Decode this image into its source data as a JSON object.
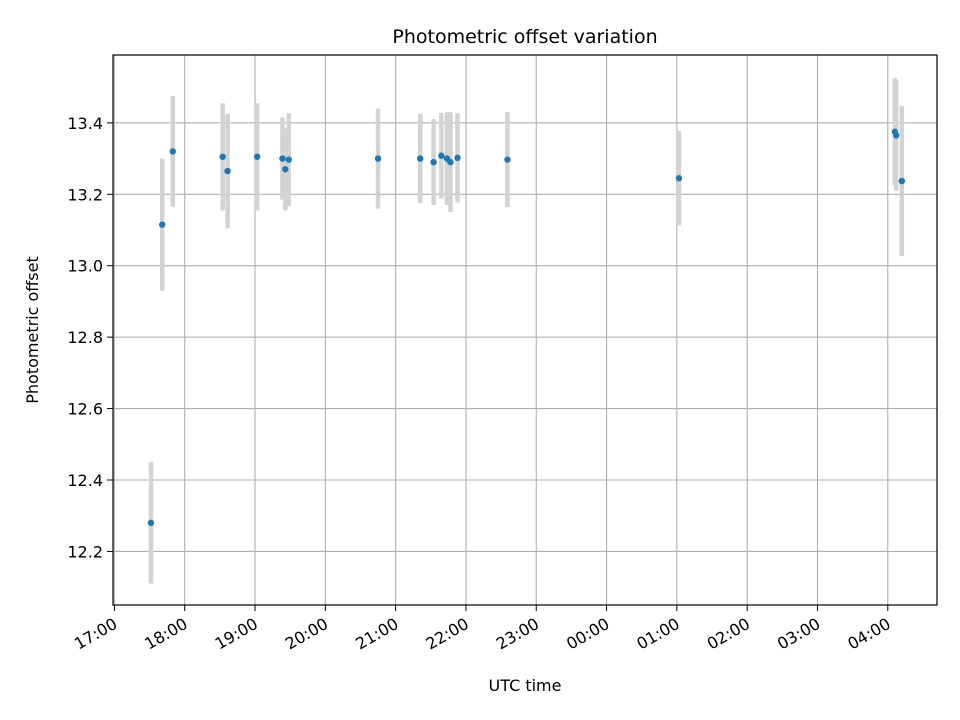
{
  "chart_data": {
    "type": "scatter",
    "title": "Photometric offset variation",
    "xlabel": "UTC time",
    "ylabel": "Photometric offset",
    "x_tick_labels": [
      "17:00",
      "18:00",
      "19:00",
      "20:00",
      "21:00",
      "22:00",
      "23:00",
      "00:00",
      "01:00",
      "02:00",
      "03:00",
      "04:00"
    ],
    "x_tick_hours": [
      17,
      18,
      19,
      20,
      21,
      22,
      23,
      24,
      25,
      26,
      27,
      28
    ],
    "xlim": [
      16.98,
      28.7
    ],
    "y_ticks": [
      12.2,
      12.4,
      12.6,
      12.8,
      13.0,
      13.2,
      13.4
    ],
    "y_tick_labels": [
      "12.2",
      "12.4",
      "12.6",
      "12.8",
      "13.0",
      "13.2",
      "13.4"
    ],
    "ylim": [
      12.05,
      13.59
    ],
    "grid": true,
    "point_color": "#1f77b4",
    "errorbar_color": "#d3d3d3",
    "points": [
      {
        "time": "17:31",
        "x": 17.52,
        "y": 12.28,
        "err": 0.17
      },
      {
        "time": "17:41",
        "x": 17.68,
        "y": 13.115,
        "err": 0.185
      },
      {
        "time": "17:50",
        "x": 17.83,
        "y": 13.32,
        "err": 0.155
      },
      {
        "time": "18:32",
        "x": 18.54,
        "y": 13.305,
        "err": 0.15
      },
      {
        "time": "18:37",
        "x": 18.61,
        "y": 13.265,
        "err": 0.16
      },
      {
        "time": "19:02",
        "x": 19.03,
        "y": 13.305,
        "err": 0.15
      },
      {
        "time": "19:24",
        "x": 19.39,
        "y": 13.3,
        "err": 0.115
      },
      {
        "time": "19:26",
        "x": 19.43,
        "y": 13.27,
        "err": 0.115
      },
      {
        "time": "19:29",
        "x": 19.48,
        "y": 13.297,
        "err": 0.13
      },
      {
        "time": "20:45",
        "x": 20.75,
        "y": 13.3,
        "err": 0.14
      },
      {
        "time": "21:21",
        "x": 21.35,
        "y": 13.3,
        "err": 0.125
      },
      {
        "time": "21:32",
        "x": 21.54,
        "y": 13.29,
        "err": 0.12
      },
      {
        "time": "21:39",
        "x": 21.65,
        "y": 13.308,
        "err": 0.12
      },
      {
        "time": "21:44",
        "x": 21.73,
        "y": 13.3,
        "err": 0.13
      },
      {
        "time": "21:47",
        "x": 21.78,
        "y": 13.29,
        "err": 0.14
      },
      {
        "time": "21:53",
        "x": 21.88,
        "y": 13.302,
        "err": 0.125
      },
      {
        "time": "22:35",
        "x": 22.59,
        "y": 13.297,
        "err": 0.133
      },
      {
        "time": "01:02",
        "x": 25.03,
        "y": 13.245,
        "err": 0.132
      },
      {
        "time": "04:06",
        "x": 28.1,
        "y": 13.375,
        "err": 0.15
      },
      {
        "time": "04:07",
        "x": 28.12,
        "y": 13.365,
        "err": 0.155
      },
      {
        "time": "04:12",
        "x": 28.2,
        "y": 13.237,
        "err": 0.21
      }
    ]
  }
}
